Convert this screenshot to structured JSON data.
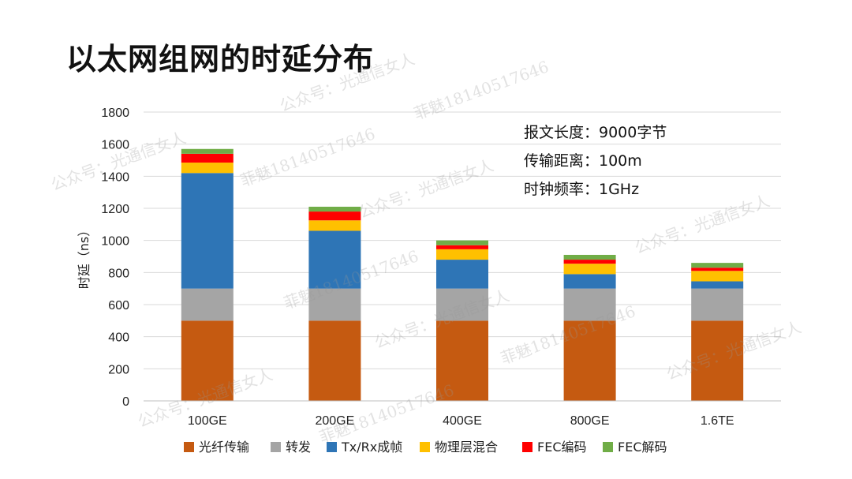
{
  "page_title": "以太网组网的时延分布",
  "watermarks": {
    "account": "公众号：光通信女人",
    "contact": "菲魅18140517646"
  },
  "chart_data": {
    "type": "bar",
    "stacked": true,
    "categories": [
      "100GE",
      "200GE",
      "400GE",
      "800GE",
      "1.6TE"
    ],
    "series": [
      {
        "name": "光纤传输",
        "color": "#C55A11",
        "values": [
          500,
          500,
          500,
          500,
          500
        ]
      },
      {
        "name": "转发",
        "color": "#A5A5A5",
        "values": [
          200,
          200,
          200,
          200,
          200
        ]
      },
      {
        "name": "Tx/Rx成帧",
        "color": "#2E75B6",
        "values": [
          720,
          360,
          180,
          90,
          45
        ]
      },
      {
        "name": "物理层混合",
        "color": "#FFC000",
        "values": [
          65,
          65,
          65,
          65,
          65
        ]
      },
      {
        "name": "FEC编码",
        "color": "#FF0000",
        "values": [
          55,
          55,
          25,
          25,
          20
        ]
      },
      {
        "name": "FEC解码",
        "color": "#70AD47",
        "values": [
          30,
          30,
          30,
          30,
          30
        ]
      }
    ],
    "ylabel": "时延（ns）",
    "ylim": [
      0,
      1800
    ],
    "yticks": [
      0,
      200,
      400,
      600,
      800,
      1000,
      1200,
      1400,
      1600,
      1800
    ],
    "grid": true,
    "legend_position": "bottom",
    "annotations": [
      "报文长度：9000字节",
      "传输距离：100m",
      "时钟频率：1GHz"
    ]
  }
}
